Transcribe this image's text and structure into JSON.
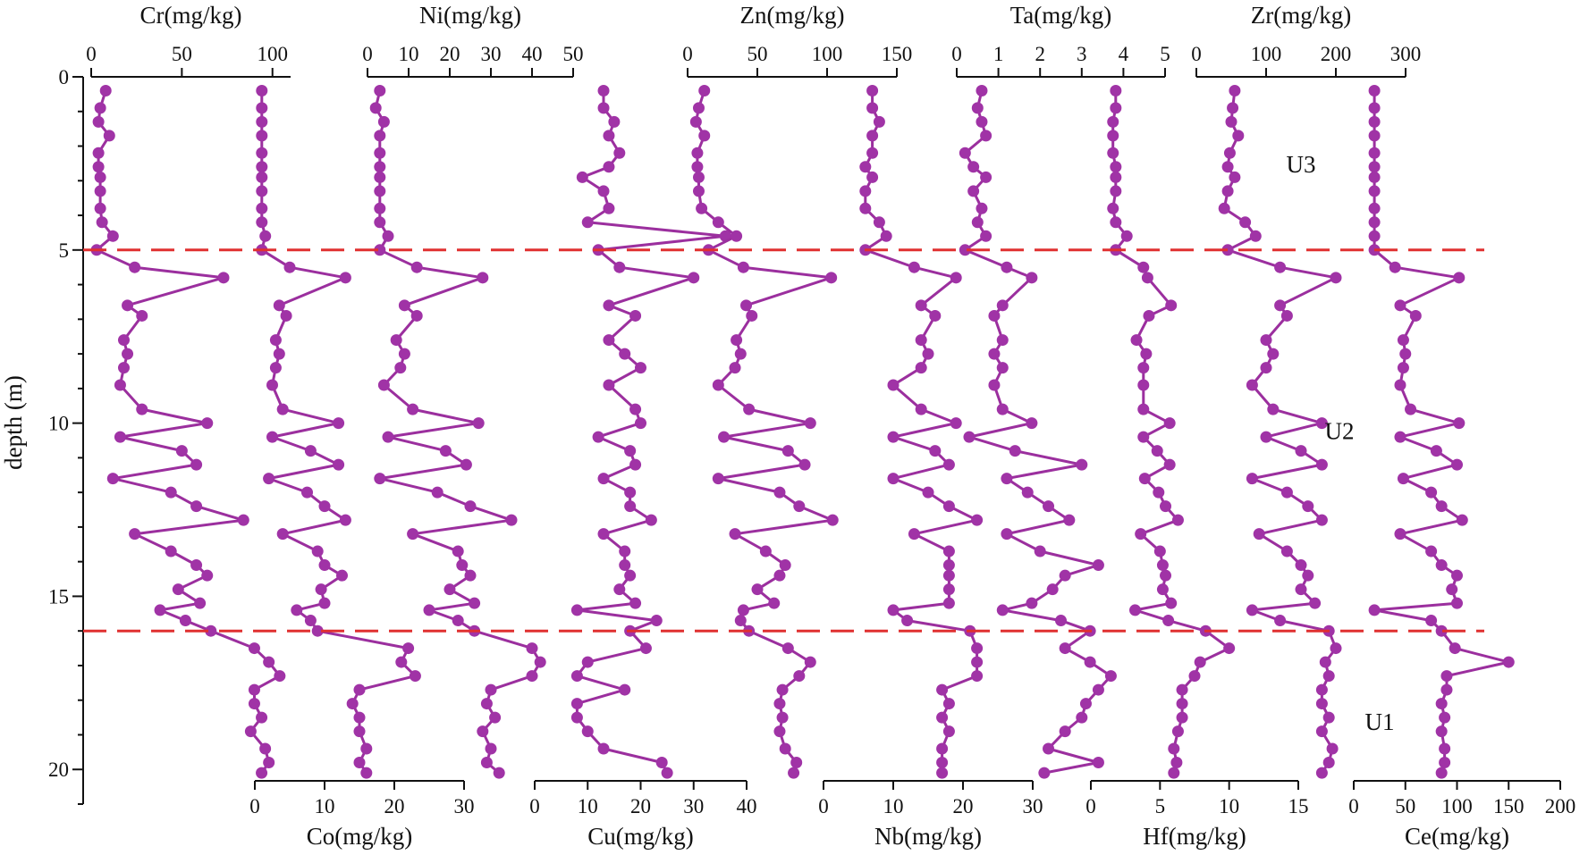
{
  "chart_data": {
    "type": "line",
    "subtype": "depth-profile",
    "y_axis": {
      "label": "depth (m)",
      "range": [
        0,
        21
      ],
      "inverted": true,
      "ticks": [
        0,
        5,
        10,
        15,
        20
      ]
    },
    "depths": [
      0.4,
      0.9,
      1.3,
      1.7,
      2.2,
      2.6,
      2.9,
      3.3,
      3.8,
      4.2,
      4.6,
      5.0,
      5.5,
      5.8,
      6.6,
      6.9,
      7.6,
      8.0,
      8.4,
      8.9,
      9.6,
      10.0,
      10.4,
      10.8,
      11.2,
      11.6,
      12.0,
      12.4,
      12.8,
      13.2,
      13.7,
      14.1,
      14.4,
      14.8,
      15.2,
      15.4,
      15.7,
      16.0,
      16.5,
      16.9,
      17.3,
      17.7,
      18.1,
      18.5,
      18.9,
      19.4,
      19.8,
      20.1
    ],
    "units_text": [
      {
        "text": "U3",
        "depth": 2.5
      },
      {
        "text": "U2",
        "depth": 10.2
      },
      {
        "text": "U1",
        "depth": 18.6
      }
    ],
    "boundaries": [
      5.0,
      16.0
    ],
    "boundary_color": "#e03030",
    "line_color": "#9b2f9e",
    "marker_color": "#a033a6",
    "series": [
      {
        "name": "Cr(mg/kg)",
        "axis": "top",
        "range": [
          0,
          110
        ],
        "ticks": [
          0,
          50,
          100
        ],
        "values": [
          8,
          5,
          4,
          10,
          4,
          4,
          5,
          5,
          5,
          6,
          12,
          3,
          24,
          73,
          20,
          28,
          18,
          20,
          18,
          16,
          28,
          64,
          16,
          50,
          58,
          12,
          44,
          58,
          84,
          24,
          44,
          58,
          64,
          48,
          60,
          38,
          52,
          66,
          90,
          98,
          104,
          90,
          90,
          94,
          88,
          96,
          98,
          94
        ]
      },
      {
        "name": "Co(mg/kg)",
        "axis": "bottom",
        "range": [
          0,
          30
        ],
        "ticks": [
          0,
          10,
          20,
          30
        ],
        "values": [
          1,
          1,
          1,
          1,
          1,
          1,
          1,
          1,
          1,
          1,
          1.5,
          1,
          5,
          13,
          3.5,
          4.5,
          3,
          3.5,
          3,
          2.5,
          4,
          12,
          2.5,
          8,
          12,
          2,
          7.5,
          10,
          13,
          4,
          9,
          10,
          12.5,
          9.5,
          10,
          6,
          8,
          9,
          22,
          21,
          23,
          15,
          14,
          15,
          15,
          16,
          15,
          16
        ]
      },
      {
        "name": "Ni(mg/kg)",
        "axis": "top",
        "range": [
          0,
          50
        ],
        "ticks": [
          0,
          10,
          20,
          30,
          40,
          50
        ],
        "values": [
          3,
          2,
          4,
          3,
          3,
          3,
          3,
          3,
          3,
          3,
          5,
          3,
          12,
          28,
          9,
          12,
          7,
          9,
          8,
          4,
          11,
          27,
          5,
          19,
          24,
          3,
          17,
          25,
          35,
          11,
          22,
          23,
          25,
          20,
          26,
          15,
          22,
          26,
          40,
          42,
          40,
          30,
          29,
          31,
          28,
          30,
          29,
          32
        ]
      },
      {
        "name": "Cu(mg/kg)",
        "axis": "bottom",
        "range": [
          0,
          40
        ],
        "ticks": [
          0,
          10,
          20,
          30,
          40
        ],
        "values": [
          13,
          13,
          15,
          14,
          16,
          14,
          9,
          13,
          14,
          10,
          36,
          12,
          16,
          30,
          14,
          19,
          14,
          17,
          20,
          14,
          19,
          20,
          12,
          18,
          19,
          13,
          18,
          18,
          22,
          13,
          17,
          17,
          18,
          16,
          19,
          8,
          23,
          18,
          21,
          10,
          8,
          17,
          8,
          8,
          10,
          13,
          24,
          25
        ]
      },
      {
        "name": "Zn(mg/kg)",
        "axis": "top",
        "range": [
          0,
          150
        ],
        "ticks": [
          0,
          50,
          100,
          150
        ],
        "values": [
          12,
          8,
          6,
          12,
          7,
          7,
          8,
          8,
          10,
          22,
          35,
          15,
          40,
          103,
          42,
          46,
          35,
          38,
          34,
          22,
          44,
          88,
          26,
          72,
          84,
          22,
          66,
          80,
          104,
          34,
          56,
          70,
          66,
          50,
          62,
          40,
          38,
          44,
          72,
          88,
          80,
          68,
          66,
          68,
          66,
          70,
          78,
          76
        ]
      },
      {
        "name": "Nb(mg/kg)",
        "axis": "bottom",
        "range": [
          0,
          30
        ],
        "ticks": [
          0,
          10,
          20,
          30
        ],
        "values": [
          7,
          7,
          8,
          7,
          7,
          6,
          7,
          6,
          6,
          8,
          9,
          6,
          13,
          19,
          14,
          16,
          14,
          15,
          14,
          10,
          14,
          19,
          10,
          16,
          18,
          10,
          15,
          18,
          22,
          13,
          18,
          18,
          18,
          18,
          18,
          10,
          12,
          21,
          22,
          22,
          22,
          17,
          18,
          17,
          18,
          17,
          17,
          17
        ]
      },
      {
        "name": "Ta(mg/kg)",
        "axis": "top",
        "range": [
          0,
          5
        ],
        "ticks": [
          0,
          1,
          2,
          3,
          4,
          5
        ],
        "values": [
          0.6,
          0.5,
          0.6,
          0.7,
          0.2,
          0.4,
          0.7,
          0.4,
          0.6,
          0.5,
          0.7,
          0.2,
          1.2,
          1.8,
          1.1,
          0.9,
          1.1,
          0.9,
          1.1,
          0.9,
          1.1,
          1.8,
          0.3,
          1.4,
          3.0,
          1.2,
          1.7,
          2.2,
          2.7,
          1.2,
          2.0,
          3.4,
          2.6,
          2.3,
          1.8,
          1.1,
          2.5,
          3.2,
          2.6,
          3.2,
          3.7,
          3.4,
          3.1,
          3.0,
          2.6,
          2.2,
          3.4,
          2.1
        ]
      },
      {
        "name": "Hf(mg/kg)",
        "axis": "bottom",
        "range": [
          0,
          15
        ],
        "ticks": [
          0,
          5,
          10,
          15
        ],
        "values": [
          1.8,
          1.8,
          1.6,
          1.6,
          1.6,
          1.8,
          1.8,
          1.8,
          1.6,
          1.8,
          2.6,
          1.8,
          3.8,
          4.1,
          5.8,
          4.2,
          3.3,
          4.0,
          3.8,
          3.8,
          3.8,
          5.7,
          3.8,
          4.8,
          5.7,
          3.9,
          4.9,
          5.4,
          6.3,
          3.6,
          5.0,
          5.2,
          5.4,
          5.2,
          5.8,
          3.2,
          5.6,
          8.3,
          10.0,
          7.9,
          7.5,
          6.6,
          6.6,
          6.6,
          6.3,
          6.0,
          6.2,
          6.0
        ]
      },
      {
        "name": "Zr(mg/kg)",
        "axis": "top",
        "range": [
          0,
          300
        ],
        "ticks": [
          0,
          100,
          200,
          300
        ],
        "values": [
          55,
          52,
          50,
          60,
          48,
          45,
          55,
          45,
          40,
          70,
          85,
          45,
          120,
          200,
          120,
          130,
          100,
          110,
          100,
          80,
          110,
          180,
          100,
          150,
          180,
          80,
          130,
          160,
          180,
          90,
          130,
          150,
          160,
          150,
          170,
          80,
          120,
          190,
          200,
          185,
          190,
          180,
          180,
          190,
          180,
          195,
          190,
          180
        ]
      },
      {
        "name": "Ce(mg/kg)",
        "axis": "bottom",
        "range": [
          0,
          200
        ],
        "ticks": [
          0,
          50,
          100,
          150,
          200
        ],
        "values": [
          20,
          20,
          20,
          20,
          20,
          20,
          20,
          20,
          20,
          20,
          20,
          20,
          40,
          102,
          45,
          60,
          48,
          50,
          48,
          45,
          55,
          102,
          45,
          80,
          100,
          48,
          75,
          85,
          105,
          45,
          75,
          85,
          100,
          95,
          100,
          20,
          75,
          85,
          98,
          150,
          90,
          90,
          85,
          88,
          85,
          88,
          88,
          85
        ]
      }
    ]
  }
}
